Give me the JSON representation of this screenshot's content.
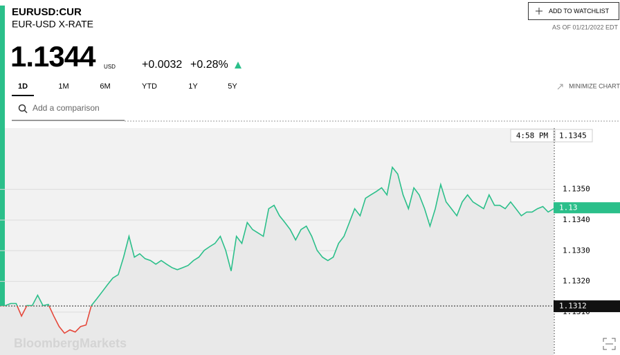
{
  "header": {
    "ticker": "EURUSD:CUR",
    "name": "EUR-USD X-RATE",
    "price": "1.1344",
    "currency": "USD",
    "change": "+0.0032",
    "change_pct": "+0.28%",
    "watchlist": "ADD TO WATCHLIST",
    "as_of": "AS OF 01/21/2022 EDT"
  },
  "tabs": [
    "1D",
    "1M",
    "6M",
    "YTD",
    "1Y",
    "5Y"
  ],
  "minimize": "MINIMIZE CHART",
  "search_placeholder": "Add a comparison",
  "brand": "BloombergMarkets",
  "chart_data": {
    "type": "line",
    "values": [
      1.13121,
      1.13121,
      1.13128,
      1.13128,
      1.13087,
      1.13121,
      1.13121,
      1.13155,
      1.13121,
      1.13125,
      1.13087,
      1.13053,
      1.13031,
      1.13042,
      1.13035,
      1.13053,
      1.13058,
      1.13121,
      1.13143,
      1.13166,
      1.13189,
      1.13211,
      1.13222,
      1.13279,
      1.13347,
      1.13279,
      1.1329,
      1.13274,
      1.13268,
      1.13256,
      1.13268,
      1.13256,
      1.13245,
      1.13238,
      1.13245,
      1.13252,
      1.13268,
      1.13279,
      1.13301,
      1.13313,
      1.13324,
      1.13347,
      1.13301,
      1.13234,
      1.13347,
      1.13324,
      1.13392,
      1.13369,
      1.13358,
      1.13347,
      1.13437,
      1.13448,
      1.13414,
      1.13392,
      1.13369,
      1.13335,
      1.13369,
      1.1338,
      1.13347,
      1.13301,
      1.13279,
      1.13268,
      1.13279,
      1.13324,
      1.13347,
      1.13392,
      1.13437,
      1.13414,
      1.13471,
      1.13482,
      1.13493,
      1.13505,
      1.13482,
      1.13572,
      1.1355,
      1.13482,
      1.13437,
      1.13505,
      1.13482,
      1.13437,
      1.1338,
      1.13437,
      1.13516,
      1.13459,
      1.13437,
      1.13414,
      1.13459,
      1.13482,
      1.13459,
      1.13448,
      1.13437,
      1.13482,
      1.13448,
      1.13448,
      1.13437,
      1.13459,
      1.13437,
      1.13414,
      1.13426,
      1.13426,
      1.13437,
      1.13444,
      1.13426,
      1.13437
    ],
    "color": "#2bbf8a",
    "down_color": "#e5473a",
    "ylim": [
      1.1296,
      1.137
    ],
    "yticks": [
      {
        "value": 1.131,
        "label": "1.1310"
      },
      {
        "value": 1.132,
        "label": "1.1320"
      },
      {
        "value": 1.133,
        "label": "1.1330"
      },
      {
        "value": 1.134,
        "label": "1.1340"
      },
      {
        "value": 1.135,
        "label": "1.1350"
      }
    ],
    "grid": true,
    "baseline": 1.1312,
    "last": {
      "value": 1.1344,
      "label": "1.13"
    },
    "cursor": {
      "time": "4:58 PM",
      "value": 1.1345
    }
  }
}
